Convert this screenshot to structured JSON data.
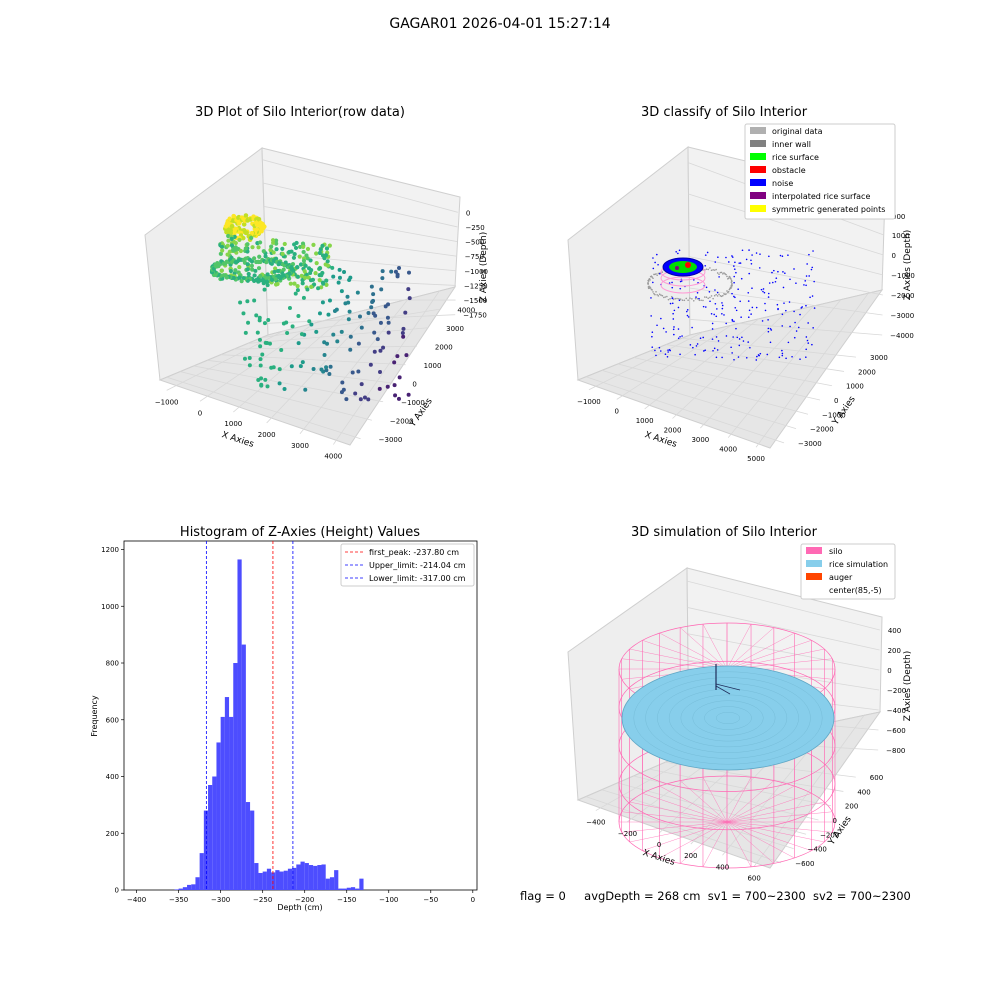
{
  "suptitle": "GAGAR01 2026-04-01 15:27:14",
  "footer": {
    "flag": "flag = 0",
    "avg": "avgDepth = 268 cm",
    "sv1": "sv1 = 700~2300",
    "sv2": "sv2 = 700~2300"
  },
  "colors": {
    "hist_bar": "#4d4dff",
    "peak_line": "#ff0000",
    "limit_line": "#0000ff",
    "silo": "#ff69b4",
    "rice": "#87ceeb",
    "auger": "#ff4500"
  },
  "chart_data": [
    {
      "type": "scatter",
      "panel": "top-left",
      "title": "3D Plot of Silo Interior(row data)",
      "xlabel": "X Axies",
      "ylabel": "Y Axies",
      "zlabel": "Z Axies (Depth)",
      "x_ticks": [
        "−1000",
        "0",
        "1000",
        "2000",
        "3000",
        "4000"
      ],
      "y_ticks": [
        "4000",
        "3000",
        "2000",
        "1000",
        "0",
        "−1000",
        "−2000",
        "−3000"
      ],
      "z_ticks": [
        "0",
        "−250",
        "−500",
        "−750",
        "−1000",
        "−1250",
        "−1500",
        "−1750"
      ],
      "colormap": "viridis"
    },
    {
      "type": "scatter",
      "panel": "top-right",
      "title": "3D classify of Silo Interior",
      "xlabel": "X Axies",
      "ylabel": "Y Axies",
      "zlabel": "Z Axies (Depth)",
      "x_ticks": [
        "−1000",
        "0",
        "1000",
        "2000",
        "3000",
        "4000",
        "5000"
      ],
      "y_ticks": [
        "3000",
        "2000",
        "1000",
        "0",
        "−1000",
        "−2000",
        "−3000"
      ],
      "z_ticks": [
        "1000",
        "0",
        "−1000",
        "−2000",
        "−3000",
        "−4000"
      ],
      "z_top_partial": "000",
      "legend": [
        {
          "label": "original data",
          "color": "#b0b0b0"
        },
        {
          "label": "inner wall",
          "color": "#808080"
        },
        {
          "label": "rice surface",
          "color": "#00ff00"
        },
        {
          "label": "obstacle",
          "color": "#ff0000"
        },
        {
          "label": "noise",
          "color": "#0000ff"
        },
        {
          "label": "interpolated rice surface",
          "color": "#800080"
        },
        {
          "label": "symmetric generated points",
          "color": "#ffff00"
        }
      ],
      "legend_position": "top-right"
    },
    {
      "type": "bar",
      "panel": "bottom-left",
      "title": "Histogram of Z-Axies (Height) Values",
      "xlabel": "Depth (cm)",
      "ylabel": "Frequency",
      "xlim": [
        -415,
        5
      ],
      "ylim": [
        0,
        1230
      ],
      "x_ticks": [
        -400,
        -350,
        -300,
        -250,
        -200,
        -150,
        -100,
        -50,
        0
      ],
      "y_ticks": [
        0,
        200,
        400,
        600,
        800,
        1000,
        1200
      ],
      "bin_start": -355,
      "bin_width": 5,
      "values": [
        2,
        5,
        10,
        18,
        20,
        45,
        130,
        280,
        370,
        400,
        520,
        610,
        680,
        610,
        800,
        1165,
        865,
        310,
        280,
        95,
        60,
        65,
        75,
        62,
        70,
        65,
        68,
        75,
        78,
        90,
        100,
        95,
        88,
        85,
        88,
        90,
        40,
        45,
        70,
        5,
        5,
        8,
        10,
        5,
        40
      ],
      "vlines": [
        {
          "label": "first_peak: -237.80 cm",
          "x": -237.8,
          "style": "red-dashed"
        },
        {
          "label": "Upper_limit: -214.04 cm",
          "x": -214.04,
          "style": "blue-dashed"
        },
        {
          "label": "Lower_limit: -317.00 cm",
          "x": -317.0,
          "style": "blue-dashed"
        }
      ],
      "legend_position": "top-right"
    },
    {
      "type": "surface",
      "panel": "bottom-right",
      "title": "3D simulation of Silo Interior",
      "xlabel": "X Axies",
      "ylabel": "Y Axies",
      "zlabel": "Z Axies (Depth)",
      "x_ticks": [
        "−400",
        "−200",
        "0",
        "200",
        "400",
        "600"
      ],
      "y_ticks": [
        "600",
        "400",
        "200",
        "0",
        "−200",
        "−400",
        "−600"
      ],
      "z_ticks": [
        "400",
        "200",
        "0",
        "−200",
        "−400",
        "−600",
        "−800"
      ],
      "legend": [
        {
          "label": "silo",
          "color": "#ff69b4"
        },
        {
          "label": "rice simulation",
          "color": "#87ceeb"
        },
        {
          "label": "auger",
          "color": "#ff4500"
        },
        {
          "label": "center(85,-5)",
          "color": ""
        }
      ],
      "legend_position": "top-right"
    }
  ]
}
